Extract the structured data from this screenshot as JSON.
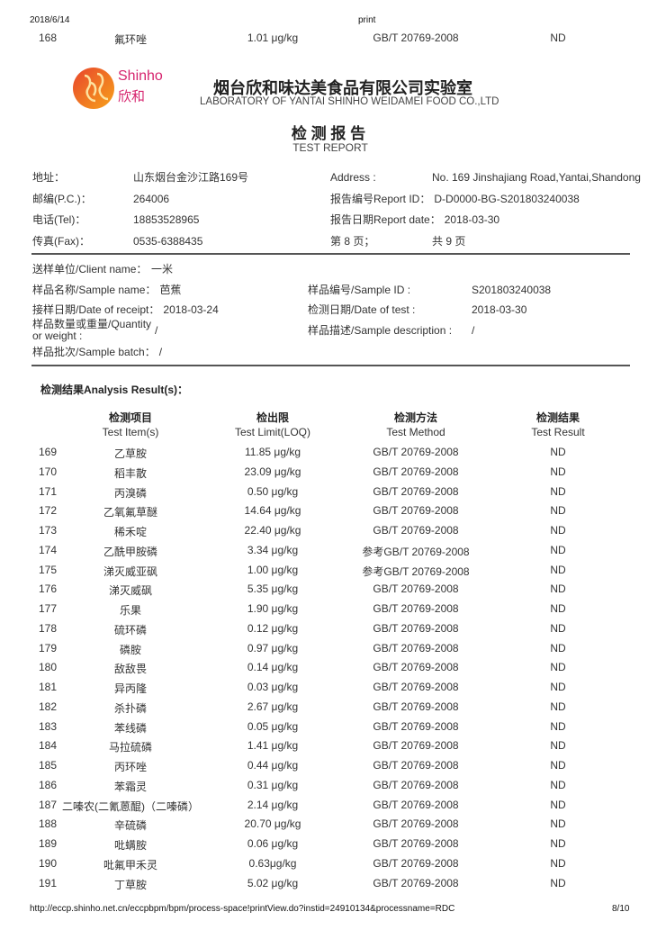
{
  "print_header": {
    "date": "2018/6/14",
    "title": "print"
  },
  "carry_row": {
    "no": "168",
    "item": "氟环唑",
    "limit": "1.01 μg/kg",
    "method": "GB/T 20769-2008",
    "result": "ND"
  },
  "lab": {
    "logo_text_en": "Shinho",
    "logo_text_cn": "欣和",
    "name_cn": "烟台欣和味达美食品有限公司实验室",
    "name_en": "LABORATORY OF YANTAI SHINHO WEIDAMEI FOOD CO.,LTD",
    "brand_colors": [
      "#e8452c",
      "#f7a21b",
      "#d6246e"
    ]
  },
  "report": {
    "title_cn": "检 测 报 告",
    "title_en": "TEST REPORT"
  },
  "contact": [
    {
      "label": "地址：",
      "value": "山东烟台金沙江路169号",
      "label2": "Address :",
      "value2": "No. 169 Jinshajiang Road,Yantai,Shandong"
    },
    {
      "label": "邮编(P.C.)：",
      "value": "264006",
      "label2": "报告编号Report ID：",
      "value2": "D-D0000-BG-S201803240038"
    },
    {
      "label": "电话(Tel)：",
      "value": "18853528965",
      "label2": "报告日期Report date：",
      "value2": "2018-03-30"
    },
    {
      "label": "传真(Fax)：",
      "value": "0535-6388435",
      "label2": "第 8 页；",
      "value2": "共 9 页"
    }
  ],
  "sample": {
    "client_label": "送样单位/Client name：",
    "client": "一米",
    "name_label": "样品名称/Sample name：",
    "name": "芭蕉",
    "id_label": "样品编号/Sample ID :",
    "id": "S201803240038",
    "receipt_label": "接样日期/Date of receipt：",
    "receipt": "2018-03-24",
    "test_date_label": "检测日期/Date of test :",
    "test_date": "2018-03-30",
    "qty_label_1": "样品数量或重量/Quantity",
    "qty_label_2": "or weight :",
    "qty": "/",
    "desc_label": "样品描述/Sample description :",
    "desc": "/",
    "batch_label": "样品批次/Sample batch：",
    "batch": "/"
  },
  "results": {
    "title": "检测结果Analysis Result(s)：",
    "headers": [
      {
        "cn": "检测项目",
        "en": "Test Item(s)"
      },
      {
        "cn": "检出限",
        "en": "Test Limit(LOQ)"
      },
      {
        "cn": "检测方法",
        "en": "Test Method"
      },
      {
        "cn": "检测结果",
        "en": "Test Result"
      }
    ],
    "rows": [
      [
        "169",
        "乙草胺",
        "11.85 μg/kg",
        "GB/T 20769-2008",
        "ND"
      ],
      [
        "170",
        "稻丰散",
        "23.09 μg/kg",
        "GB/T 20769-2008",
        "ND"
      ],
      [
        "171",
        "丙溴磷",
        "0.50 μg/kg",
        "GB/T 20769-2008",
        "ND"
      ],
      [
        "172",
        "乙氧氟草醚",
        "14.64 μg/kg",
        "GB/T 20769-2008",
        "ND"
      ],
      [
        "173",
        "稀禾啶",
        "22.40 μg/kg",
        "GB/T 20769-2008",
        "ND"
      ],
      [
        "174",
        "乙酰甲胺磷",
        "3.34 μg/kg",
        "参考GB/T 20769-2008",
        "ND"
      ],
      [
        "175",
        "涕灭威亚砜",
        "1.00 μg/kg",
        "参考GB/T 20769-2008",
        "ND"
      ],
      [
        "176",
        "涕灭威砜",
        "5.35 μg/kg",
        "GB/T 20769-2008",
        "ND"
      ],
      [
        "177",
        "乐果",
        "1.90 μg/kg",
        "GB/T 20769-2008",
        "ND"
      ],
      [
        "178",
        "硫环磷",
        "0.12 μg/kg",
        "GB/T 20769-2008",
        "ND"
      ],
      [
        "179",
        "磷胺",
        "0.97 μg/kg",
        "GB/T 20769-2008",
        "ND"
      ],
      [
        "180",
        "敌敌畏",
        "0.14 μg/kg",
        "GB/T 20769-2008",
        "ND"
      ],
      [
        "181",
        "异丙隆",
        "0.03 μg/kg",
        "GB/T 20769-2008",
        "ND"
      ],
      [
        "182",
        "杀扑磷",
        "2.67 μg/kg",
        "GB/T 20769-2008",
        "ND"
      ],
      [
        "183",
        "苯线磷",
        "0.05 μg/kg",
        "GB/T 20769-2008",
        "ND"
      ],
      [
        "184",
        "马拉硫磷",
        "1.41 μg/kg",
        "GB/T 20769-2008",
        "ND"
      ],
      [
        "185",
        "丙环唑",
        "0.44 μg/kg",
        "GB/T 20769-2008",
        "ND"
      ],
      [
        "186",
        "苯霜灵",
        "0.31 μg/kg",
        "GB/T 20769-2008",
        "ND"
      ],
      [
        "187",
        "二嗪农(二氰蒽醌)（二嗪磷）",
        "2.14 μg/kg",
        "GB/T 20769-2008",
        "ND"
      ],
      [
        "188",
        "辛硫磷",
        "20.70 μg/kg",
        "GB/T 20769-2008",
        "ND"
      ],
      [
        "189",
        "吡螨胺",
        "0.06 μg/kg",
        "GB/T 20769-2008",
        "ND"
      ],
      [
        "190",
        "吡氟甲禾灵",
        "0.63μg/kg",
        "GB/T 20769-2008",
        "ND"
      ],
      [
        "191",
        "丁草胺",
        "5.02 μg/kg",
        "GB/T 20769-2008",
        "ND"
      ]
    ]
  },
  "footer": {
    "url": "http://eccp.shinho.net.cn/eccpbpm/bpm/process-space!printView.do?instid=24910134&processname=RDC",
    "page": "8/10"
  }
}
